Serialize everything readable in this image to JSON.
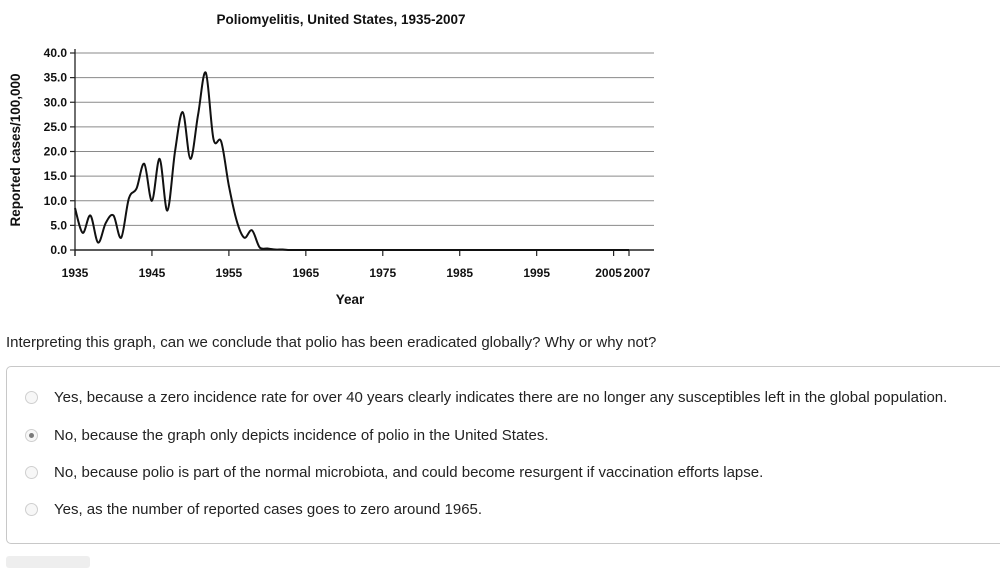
{
  "chart_data": {
    "type": "line",
    "title": "Poliomyelitis, United States, 1935-2007",
    "xlabel": "Year",
    "ylabel": "Reported cases/100,000",
    "xlim": [
      1935,
      2007
    ],
    "ylim": [
      0,
      40
    ],
    "yticks": [
      0,
      5,
      10,
      15,
      20,
      25,
      30,
      35,
      40
    ],
    "ytick_labels": [
      "0.0",
      "5.0",
      "10.0",
      "15.0",
      "20.0",
      "25.0",
      "30.0",
      "35.0",
      "40.0"
    ],
    "xticks": [
      1935,
      1945,
      1955,
      1965,
      1975,
      1985,
      1995,
      2005,
      2007
    ],
    "xtick_labels": [
      "1935",
      "1945",
      "1955",
      "1965",
      "1975",
      "1985",
      "1995",
      "2005",
      "2007"
    ],
    "grid": true,
    "series": [
      {
        "name": "Poliomyelitis",
        "x": [
          1935,
          1936,
          1937,
          1938,
          1939,
          1940,
          1941,
          1942,
          1943,
          1944,
          1945,
          1946,
          1947,
          1948,
          1949,
          1950,
          1951,
          1952,
          1953,
          1954,
          1955,
          1956,
          1957,
          1958,
          1959,
          1960,
          1961,
          1962,
          1963,
          1965,
          1975,
          1985,
          1995,
          2007
        ],
        "values": [
          8.5,
          3.5,
          7.0,
          1.5,
          5.5,
          7.0,
          2.5,
          10.5,
          12.5,
          17.5,
          10.0,
          18.5,
          8.0,
          20.0,
          28.0,
          18.5,
          27.5,
          36.0,
          22.5,
          22.0,
          13.0,
          6.0,
          2.5,
          4.0,
          0.5,
          0.3,
          0.1,
          0.1,
          0.0,
          0.0,
          0.0,
          0.0,
          0.0,
          0.0
        ]
      }
    ]
  },
  "quiz": {
    "question": "Interpreting this graph, can we conclude that polio has been eradicated globally? Why or why not?",
    "options": [
      {
        "label": "Yes, because a zero incidence rate for over 40 years clearly indicates there are no longer any susceptibles left in the global population.",
        "selected": false
      },
      {
        "label": "No, because the graph only depicts incidence of polio in the United States.",
        "selected": true
      },
      {
        "label": "No, because polio is part of the normal microbiota, and could become resurgent if vaccination efforts lapse.",
        "selected": false
      },
      {
        "label": "Yes, as the number of reported cases goes to zero around 1965.",
        "selected": false
      }
    ]
  }
}
